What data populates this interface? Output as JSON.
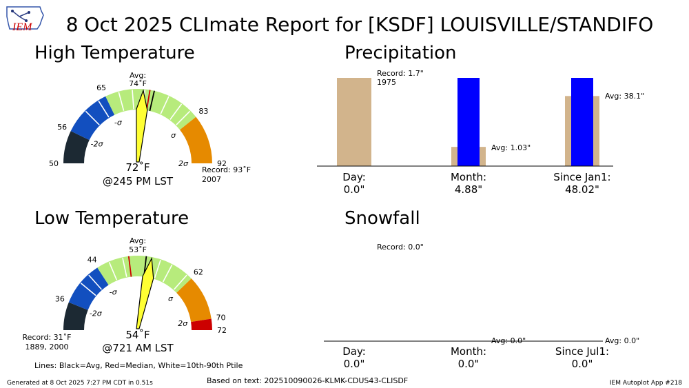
{
  "title": "8 Oct 2025 CLImate Report for [KSDF] LOUISVILLE/STANDIFO",
  "logo_text": "IEM",
  "footer": {
    "generated": "Generated at 8 Oct 2025 7:27 PM CDT in 0.51s",
    "source": "Based on text: 202510090026-KLMK-CDUS43-CLISDF",
    "app": "IEM Autoplot App #218"
  },
  "legend_note": "Lines: Black=Avg, Red=Median, White=10th-90th Ptile",
  "colors": {
    "band_2sigma_low": "#1c2933",
    "band_sigma_low": "#124fbf",
    "band_normal": "#b7eb7c",
    "band_sigma_high": "#e68a00",
    "band_record": "#cc0000",
    "needle": "#ffff33",
    "precip_avg": "#d2b48c",
    "precip_obs": "#0000ff"
  },
  "chart_data": [
    {
      "type": "gauge",
      "title": "High Temperature",
      "scale_min": 50,
      "scale_max": 92,
      "ticks": [
        "50",
        "56",
        "65",
        "83",
        "92"
      ],
      "tick_values": [
        50,
        56,
        65,
        83,
        92
      ],
      "sigma_labels": [
        "-2σ",
        "-σ",
        "σ",
        "2σ"
      ],
      "bands": [
        {
          "from": 50,
          "to": 56,
          "color_key": "band_2sigma_low"
        },
        {
          "from": 56,
          "to": 65,
          "color_key": "band_sigma_low"
        },
        {
          "from": 65,
          "to": 83,
          "color_key": "band_normal"
        },
        {
          "from": 83,
          "to": 92,
          "color_key": "band_sigma_high"
        },
        {
          "from": 92,
          "to": 93,
          "color_key": "band_record"
        }
      ],
      "percentile_lines": [
        60.5,
        63.5,
        67.5,
        70,
        72.3,
        76.8,
        79.5,
        81.5
      ],
      "average": 74,
      "median": 73.2,
      "avg_label": "Avg:",
      "avg_value_label": "74˚F",
      "observed": 72,
      "observed_label": "72˚F",
      "time_label": "@245 PM LST",
      "record_label": "Record: 93˚F",
      "record_years": "2007",
      "record_side": "right"
    },
    {
      "type": "gauge",
      "title": "Low Temperature",
      "scale_min": 31,
      "scale_max": 72,
      "ticks": [
        "36",
        "44",
        "62",
        "70",
        "72"
      ],
      "tick_values": [
        36,
        44,
        62,
        70,
        72
      ],
      "sigma_labels": [
        "-2σ",
        "-σ",
        "σ",
        "2σ"
      ],
      "bands": [
        {
          "from": 31,
          "to": 36,
          "color_key": "band_2sigma_low"
        },
        {
          "from": 36,
          "to": 44,
          "color_key": "band_sigma_low"
        },
        {
          "from": 44,
          "to": 62,
          "color_key": "band_normal"
        },
        {
          "from": 62,
          "to": 70,
          "color_key": "band_sigma_high"
        },
        {
          "from": 70,
          "to": 72,
          "color_key": "band_record"
        }
      ],
      "percentile_lines": [
        40,
        42,
        46.3,
        48.8,
        55.6,
        57.8,
        61
      ],
      "average": 53,
      "median": 49.9,
      "avg_label": "Avg:",
      "avg_value_label": "53˚F",
      "observed": 54,
      "observed_label": "54˚F",
      "time_label": "@721 AM LST",
      "record_label": "Record: 31˚F",
      "record_years": "1889, 2000",
      "record_side": "left"
    },
    {
      "type": "bar",
      "title": "Precipitation",
      "units": "in",
      "ylim": [
        0,
        1.7
      ],
      "categories": [
        "Day:",
        "Month:",
        "Since Jan1:"
      ],
      "value_labels": [
        "0.0\"",
        "4.88\"",
        "48.02\""
      ],
      "series": [
        {
          "name": "Avg",
          "values": [
            1.7,
            0.37,
            1.35
          ]
        },
        {
          "name": "Observed",
          "values": [
            0.0,
            1.7,
            1.7
          ]
        }
      ],
      "annotations": [
        {
          "text": "Record: 1.7\"",
          "subtext": "1975",
          "category": 0
        },
        {
          "text": "Avg: 1.03\"",
          "category": 1
        },
        {
          "text": "Avg: 38.1\"",
          "category": 2
        }
      ]
    },
    {
      "type": "bar",
      "title": "Snowfall",
      "units": "in",
      "ylim": [
        0,
        1
      ],
      "categories": [
        "Day:",
        "Month:",
        "Since Jul1:"
      ],
      "value_labels": [
        "0.0\"",
        "0.0\"",
        "0.0\""
      ],
      "series": [
        {
          "name": "Avg",
          "values": [
            0.0,
            0.0,
            0.0
          ]
        },
        {
          "name": "Observed",
          "values": [
            0.0,
            0.0,
            0.0
          ]
        }
      ],
      "annotations": [
        {
          "text": "Record: 0.0\"",
          "category": 0
        },
        {
          "text": "Avg: 0.0\"",
          "category": 1
        },
        {
          "text": "Avg: 0.0\"",
          "category": 2
        }
      ]
    }
  ]
}
